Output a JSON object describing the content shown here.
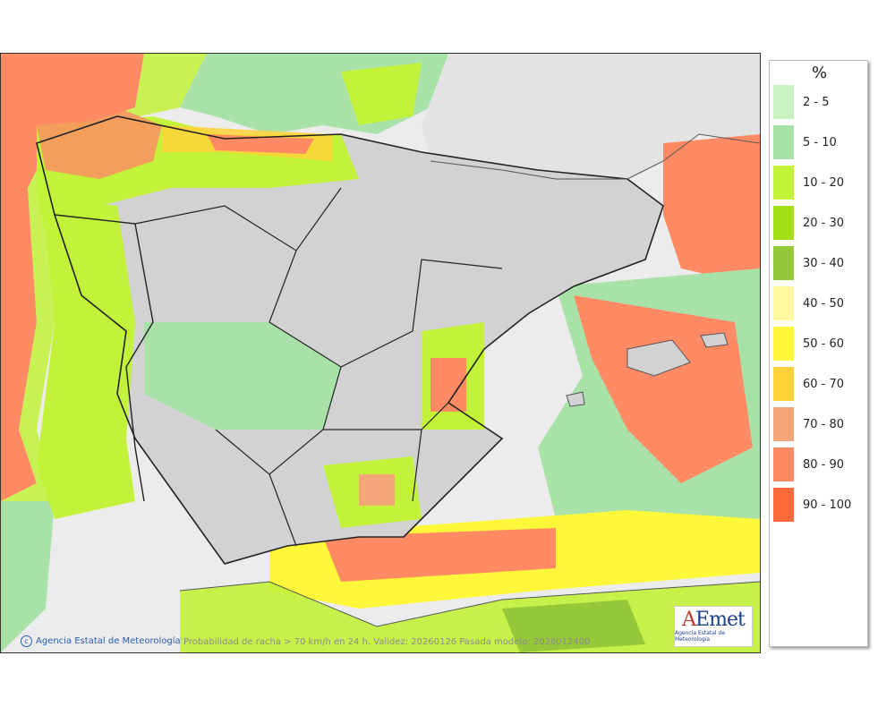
{
  "legend": {
    "title": "%",
    "items": [
      {
        "label": "2 - 5",
        "color": "#c8f2c0"
      },
      {
        "label": "5 - 10",
        "color": "#a9e2a9"
      },
      {
        "label": "10 - 20",
        "color": "#c2f23a"
      },
      {
        "label": "20 - 30",
        "color": "#a4e01a"
      },
      {
        "label": "30 - 40",
        "color": "#96c93a"
      },
      {
        "label": "40 - 50",
        "color": "#fffaa0"
      },
      {
        "label": "50 - 60",
        "color": "#fff83a"
      },
      {
        "label": "60 - 70",
        "color": "#ffd23a"
      },
      {
        "label": "70 - 80",
        "color": "#f5a678"
      },
      {
        "label": "80 - 90",
        "color": "#ff8a64"
      },
      {
        "label": "90 - 100",
        "color": "#ff6a3a"
      }
    ]
  },
  "map": {
    "credit": "Agencia Estatal de Meteorología",
    "caption": "Probabilidad de racha > 70 km/h en 24 h. Validez: 20260126 Pasada modelo: 2026012400",
    "logo_text": "AEmet",
    "logo_subtitle": "Agencia Estatal de Meteorología",
    "land_color": "#d9d9d9",
    "sea_color": "#e8e8e8"
  }
}
